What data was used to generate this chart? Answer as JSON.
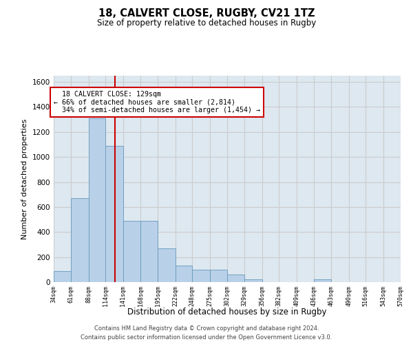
{
  "title1": "18, CALVERT CLOSE, RUGBY, CV21 1TZ",
  "title2": "Size of property relative to detached houses in Rugby",
  "xlabel": "Distribution of detached houses by size in Rugby",
  "ylabel": "Number of detached properties",
  "footer": "Contains HM Land Registry data © Crown copyright and database right 2024.\nContains public sector information licensed under the Open Government Licence v3.0.",
  "property_label": "18 CALVERT CLOSE: 129sqm",
  "pct_smaller": 66,
  "n_smaller": 2814,
  "pct_larger": 34,
  "n_larger": 1454,
  "bin_edges": [
    34,
    61,
    88,
    114,
    141,
    168,
    195,
    222,
    248,
    275,
    302,
    329,
    356,
    382,
    409,
    436,
    463,
    490,
    516,
    543,
    570
  ],
  "bar_heights": [
    90,
    670,
    1310,
    1090,
    490,
    490,
    270,
    130,
    100,
    100,
    60,
    20,
    0,
    0,
    0,
    20,
    0,
    0,
    0,
    0
  ],
  "bar_color": "#b8d0e8",
  "bar_edge_color": "#6699bb",
  "vline_x": 129,
  "vline_color": "#cc0000",
  "annotation_box_color": "#cc0000",
  "ylim": [
    0,
    1650
  ],
  "yticks": [
    0,
    200,
    400,
    600,
    800,
    1000,
    1200,
    1400,
    1600
  ],
  "grid_color": "#cccccc",
  "bg_color": "#dde8f0"
}
